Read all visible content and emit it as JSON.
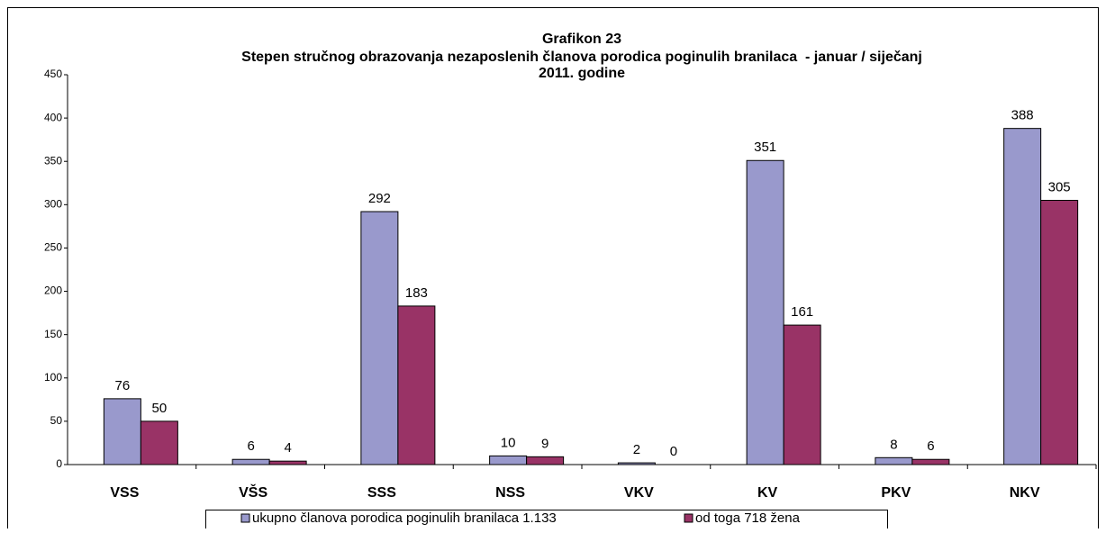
{
  "chart_data": {
    "type": "bar",
    "title": "Grafikon 23",
    "subtitle": [
      "Stepen stručnog obrazovanja nezaposlenih članova porodica poginulih branilaca  - januar / siječanj",
      "2011. godine"
    ],
    "categories": [
      "VSS",
      "VŠS",
      "SSS",
      "NSS",
      "VKV",
      "KV",
      "PKV",
      "NKV"
    ],
    "series": [
      {
        "name": "ukupno članova porodica poginulih branilaca 1.133",
        "color": "#9999cc",
        "values": [
          76,
          6,
          292,
          10,
          2,
          351,
          8,
          388
        ]
      },
      {
        "name": "od toga 718 žena",
        "color": "#993366",
        "values": [
          50,
          4,
          183,
          9,
          0,
          161,
          6,
          305
        ]
      }
    ],
    "ylim": [
      0,
      450
    ],
    "yticks": [
      0,
      50,
      100,
      150,
      200,
      250,
      300,
      350,
      400,
      450
    ],
    "grid": false,
    "legend": "bottom"
  }
}
